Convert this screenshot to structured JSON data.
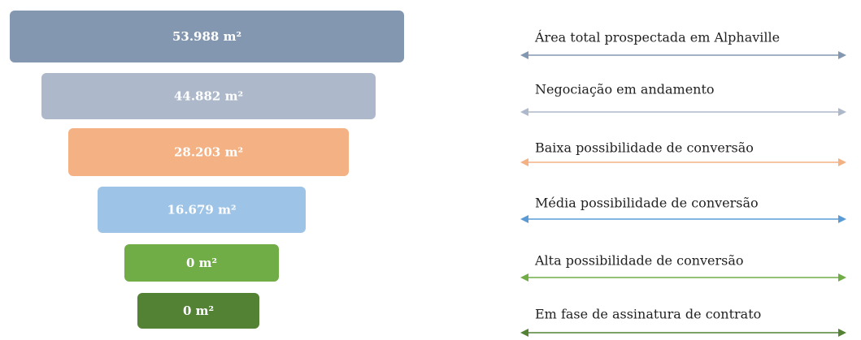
{
  "chart_data": {
    "type": "funnel",
    "categories": [
      "Área total prospectada em Alphaville",
      "Negociação em andamento",
      "Baixa possibilidade de conversão",
      "Média possibilidade de conversão",
      "Alta possibilidade de conversão",
      "Em fase de assinatura de contrato"
    ],
    "values": [
      53988,
      44882,
      28203,
      16679,
      0,
      0
    ],
    "value_labels": [
      "53.988 m²",
      "44.882 m²",
      "28.203 m²",
      "16.679 m²",
      "0 m²",
      "0 m²"
    ],
    "colors": [
      "#8497b0",
      "#adb9ca",
      "#f4b183",
      "#9dc3e6",
      "#70ad47",
      "#548235"
    ]
  }
}
